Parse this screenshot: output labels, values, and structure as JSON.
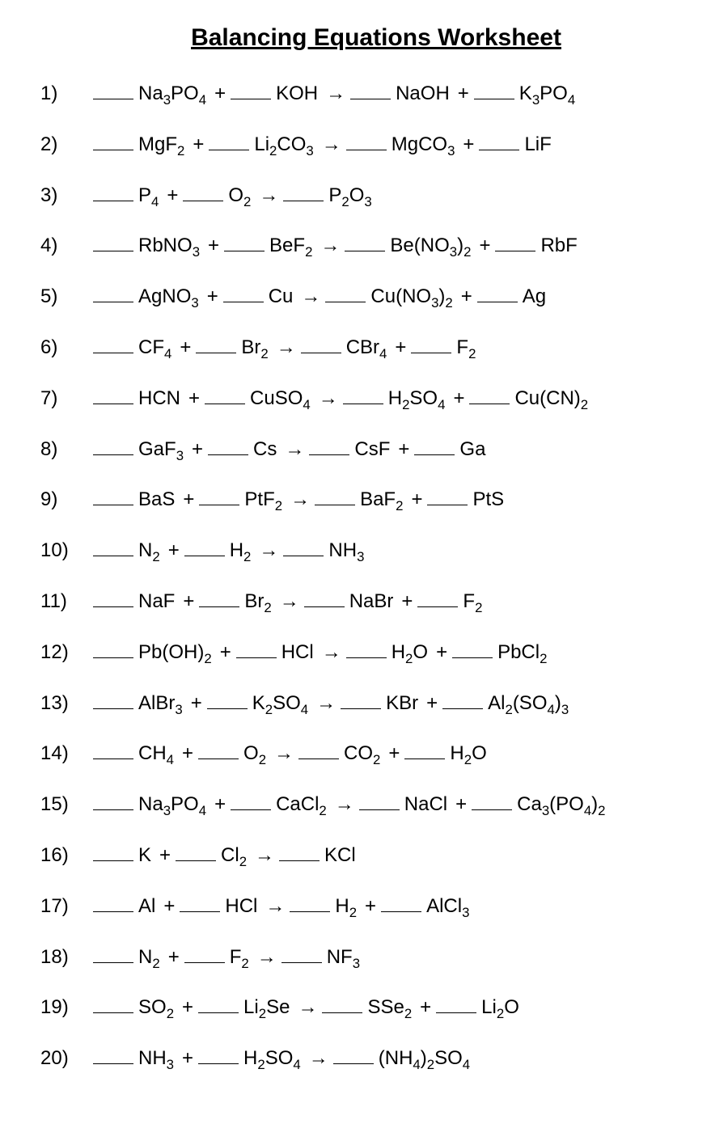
{
  "title": "Balancing Equations Worksheet",
  "plus": "+",
  "arrow": "→",
  "equations": [
    {
      "num": "1)",
      "reactants": [
        "Na<sub>3</sub>PO<sub>4</sub>",
        "KOH"
      ],
      "products": [
        "NaOH",
        "K<sub>3</sub>PO<sub>4</sub>"
      ]
    },
    {
      "num": "2)",
      "reactants": [
        "MgF<sub>2</sub>",
        "Li<sub>2</sub>CO<sub>3</sub>"
      ],
      "products": [
        "MgCO<sub>3</sub>",
        "LiF"
      ]
    },
    {
      "num": "3)",
      "reactants": [
        "P<sub>4</sub>",
        "O<sub>2</sub>"
      ],
      "products": [
        "P<sub>2</sub>O<sub>3</sub>"
      ]
    },
    {
      "num": "4)",
      "reactants": [
        "RbNO<sub>3</sub>",
        "BeF<sub>2</sub>"
      ],
      "products": [
        "Be(NO<sub>3</sub>)<sub>2</sub>",
        "RbF"
      ]
    },
    {
      "num": "5)",
      "reactants": [
        "AgNO<sub>3</sub>",
        "Cu"
      ],
      "products": [
        "Cu(NO<sub>3</sub>)<sub>2</sub>",
        "Ag"
      ]
    },
    {
      "num": "6)",
      "reactants": [
        "CF<sub>4</sub>",
        "Br<sub>2</sub>"
      ],
      "products": [
        "CBr<sub>4</sub>",
        "F<sub>2</sub>"
      ]
    },
    {
      "num": "7)",
      "reactants": [
        "HCN",
        "CuSO<sub>4</sub>"
      ],
      "products": [
        "H<sub>2</sub>SO<sub>4</sub>",
        "Cu(CN)<sub>2</sub>"
      ]
    },
    {
      "num": "8)",
      "reactants": [
        "GaF<sub>3</sub>",
        "Cs"
      ],
      "products": [
        "CsF",
        "Ga"
      ]
    },
    {
      "num": "9)",
      "reactants": [
        "BaS",
        "PtF<sub>2</sub>"
      ],
      "products": [
        "BaF<sub>2</sub>",
        "PtS"
      ]
    },
    {
      "num": "10)",
      "reactants": [
        "N<sub>2</sub>",
        "H<sub>2</sub>"
      ],
      "products": [
        "NH<sub>3</sub>"
      ]
    },
    {
      "num": "11)",
      "reactants": [
        "NaF",
        "Br<sub>2</sub>"
      ],
      "products": [
        "NaBr",
        "F<sub>2</sub>"
      ]
    },
    {
      "num": "12)",
      "reactants": [
        "Pb(OH)<sub>2</sub>",
        "HCl"
      ],
      "products": [
        "H<sub>2</sub>O",
        "PbCl<sub>2</sub>"
      ]
    },
    {
      "num": "13)",
      "reactants": [
        "AlBr<sub>3</sub>",
        "K<sub>2</sub>SO<sub>4</sub>"
      ],
      "products": [
        "KBr",
        "Al<sub>2</sub>(SO<sub>4</sub>)<sub>3</sub>"
      ]
    },
    {
      "num": "14)",
      "reactants": [
        "CH<sub>4</sub>",
        "O<sub>2</sub>"
      ],
      "products": [
        "CO<sub>2</sub>",
        "H<sub>2</sub>O"
      ]
    },
    {
      "num": "15)",
      "reactants": [
        "Na<sub>3</sub>PO<sub>4</sub>",
        "CaCl<sub>2</sub>"
      ],
      "products": [
        "NaCl",
        "Ca<sub>3</sub>(PO<sub>4</sub>)<sub>2</sub>"
      ]
    },
    {
      "num": "16)",
      "reactants": [
        "K",
        "Cl<sub>2</sub>"
      ],
      "products": [
        "KCl"
      ]
    },
    {
      "num": "17)",
      "reactants": [
        "Al",
        "HCl"
      ],
      "products": [
        "H<sub>2</sub>",
        "AlCl<sub>3</sub>"
      ]
    },
    {
      "num": "18)",
      "reactants": [
        "N<sub>2</sub>",
        "F<sub>2</sub>"
      ],
      "products": [
        "NF<sub>3</sub>"
      ]
    },
    {
      "num": "19)",
      "reactants": [
        "SO<sub>2</sub>",
        "Li<sub>2</sub>Se"
      ],
      "products": [
        "SSe<sub>2</sub>",
        "Li<sub>2</sub>O"
      ]
    },
    {
      "num": "20)",
      "reactants": [
        "NH<sub>3</sub>",
        "H<sub>2</sub>SO<sub>4</sub>"
      ],
      "products": [
        "(NH<sub>4</sub>)<sub>2</sub>SO<sub>4</sub>"
      ]
    }
  ]
}
